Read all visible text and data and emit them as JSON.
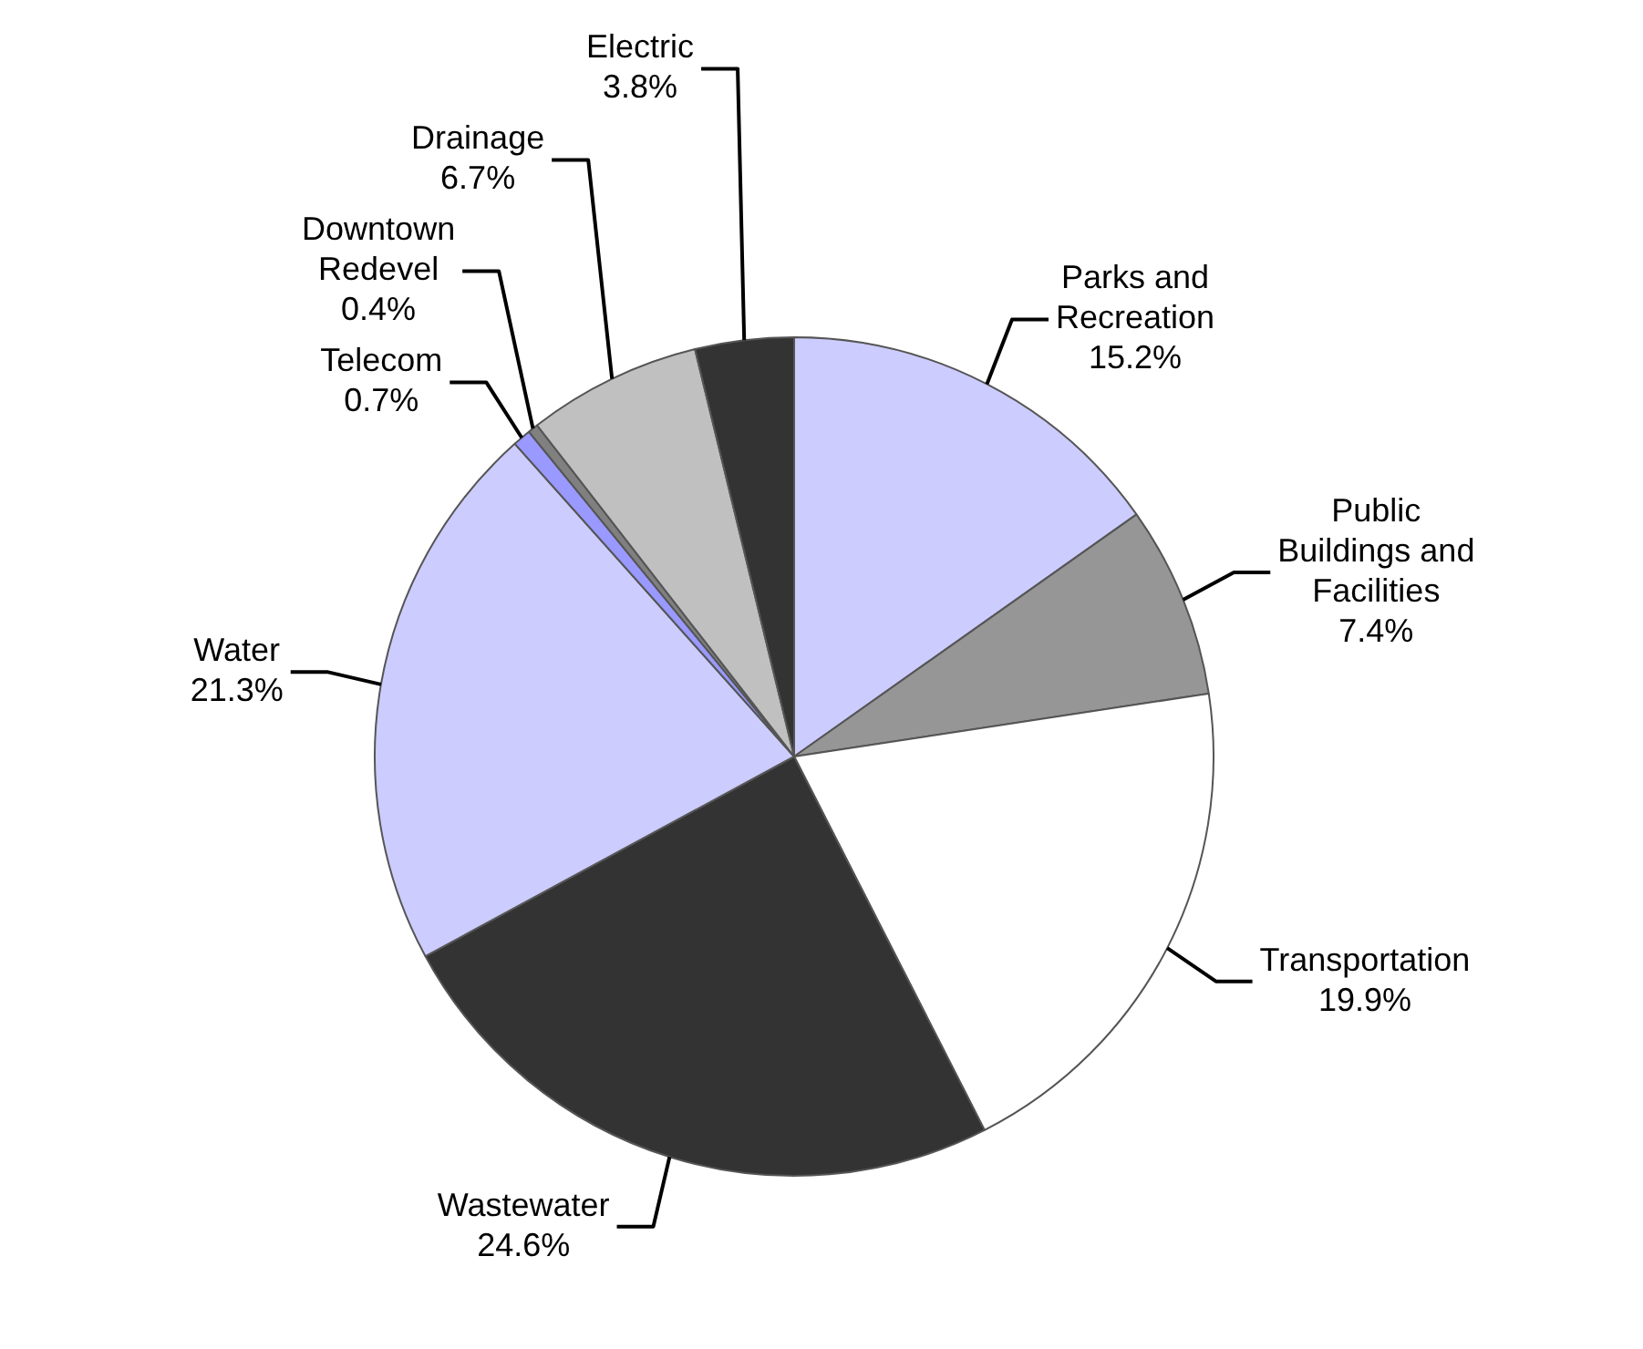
{
  "chart_data": {
    "type": "pie",
    "categories": [
      "Parks and Recreation",
      "Public Buildings and Facilities",
      "Transportation",
      "Wastewater",
      "Water",
      "Telecom",
      "Downtown Redevel",
      "Drainage",
      "Electric"
    ],
    "values": [
      15.2,
      7.4,
      19.9,
      24.6,
      21.3,
      0.7,
      0.4,
      6.7,
      3.8
    ],
    "value_labels": [
      "15.2%",
      "7.4%",
      "19.9%",
      "24.6%",
      "21.3%",
      "0.7%",
      "0.4%",
      "6.7%",
      "3.8%"
    ],
    "colors": [
      "#ccccff",
      "#969696",
      "#ffffff",
      "#333333",
      "#ccccff",
      "#9999ff",
      "#808080",
      "#c0c0c0",
      "#333333"
    ],
    "legend": false
  }
}
